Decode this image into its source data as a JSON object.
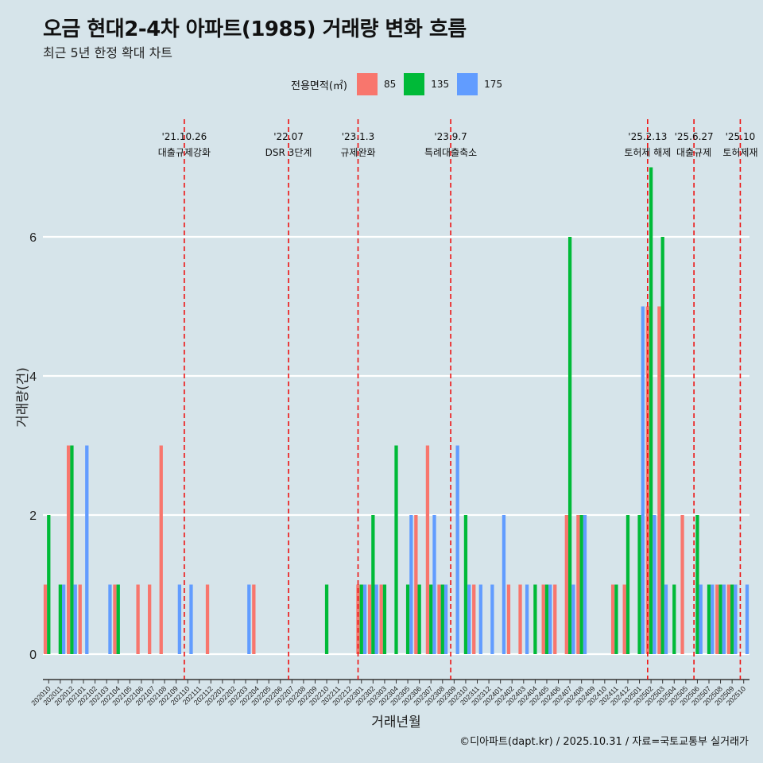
{
  "header": {
    "title": "오금 현대2-4차 아파트(1985) 거래량 변화 흐름",
    "subtitle": "최근 5년 한정 확대 차트"
  },
  "footer": {
    "caption": "©디아파트(dapt.kr) / 2025.10.31 / 자료=국토교통부 실거래가"
  },
  "legend": {
    "title": "전용면적(㎡)",
    "entries": [
      {
        "label": "85",
        "color": "#f8766d"
      },
      {
        "label": "135",
        "color": "#00ba38"
      },
      {
        "label": "175",
        "color": "#619cff"
      }
    ]
  },
  "chart_data": {
    "type": "bar",
    "title": "오금 현대2-4차 아파트(1985) 거래량 변화 흐름",
    "xlabel": "거래년월",
    "ylabel": "거래량(건)",
    "ylim": [
      0,
      7
    ],
    "yticks": [
      0,
      2,
      4,
      6
    ],
    "categories": [
      "202010",
      "202011",
      "202012",
      "202101",
      "202102",
      "202103",
      "202104",
      "202105",
      "202106",
      "202107",
      "202108",
      "202109",
      "202110",
      "202111",
      "202112",
      "202201",
      "202202",
      "202203",
      "202204",
      "202205",
      "202206",
      "202207",
      "202208",
      "202209",
      "202210",
      "202211",
      "202212",
      "202301",
      "202302",
      "202303",
      "202304",
      "202305",
      "202306",
      "202307",
      "202308",
      "202309",
      "202310",
      "202311",
      "202312",
      "202401",
      "202402",
      "202403",
      "202404",
      "202405",
      "202406",
      "202407",
      "202408",
      "202409",
      "202410",
      "202411",
      "202412",
      "202501",
      "202502",
      "202503",
      "202504",
      "202505",
      "202506",
      "202507",
      "202508",
      "202509",
      "202510"
    ],
    "series": [
      {
        "name": "85",
        "values": [
          1,
          0,
          3,
          1,
          0,
          0,
          1,
          0,
          1,
          1,
          3,
          0,
          0,
          0,
          1,
          0,
          0,
          0,
          1,
          0,
          0,
          0,
          0,
          0,
          0,
          0,
          0,
          1,
          1,
          1,
          0,
          0,
          2,
          3,
          1,
          0,
          0,
          1,
          0,
          0,
          1,
          1,
          0,
          1,
          1,
          2,
          2,
          0,
          0,
          1,
          1,
          0,
          5,
          5,
          0,
          2,
          0,
          0,
          1,
          1,
          0
        ]
      },
      {
        "name": "135",
        "values": [
          2,
          1,
          3,
          0,
          0,
          0,
          1,
          0,
          0,
          0,
          0,
          0,
          0,
          0,
          0,
          0,
          0,
          0,
          0,
          0,
          0,
          0,
          0,
          0,
          1,
          0,
          0,
          1,
          2,
          1,
          3,
          1,
          1,
          1,
          1,
          0,
          2,
          0,
          0,
          0,
          0,
          0,
          1,
          1,
          0,
          6,
          2,
          0,
          0,
          1,
          2,
          2,
          7,
          6,
          1,
          0,
          2,
          1,
          1,
          1,
          0
        ]
      },
      {
        "name": "175",
        "values": [
          0,
          1,
          1,
          3,
          0,
          1,
          0,
          0,
          0,
          0,
          0,
          1,
          1,
          0,
          0,
          0,
          0,
          1,
          0,
          0,
          0,
          0,
          0,
          0,
          0,
          0,
          0,
          1,
          1,
          0,
          0,
          2,
          0,
          2,
          1,
          3,
          1,
          1,
          1,
          2,
          0,
          1,
          0,
          1,
          0,
          1,
          2,
          0,
          0,
          0,
          0,
          5,
          2,
          1,
          0,
          0,
          1,
          1,
          1,
          1,
          1
        ]
      }
    ],
    "events": [
      {
        "date": "'21.10.26",
        "label": "대출규제강화",
        "x_month": "202110"
      },
      {
        "date": "'22.07",
        "label": "DSR 3단계",
        "x_month": "202207"
      },
      {
        "date": "'23.1.3",
        "label": "규제완화",
        "x_month": "202301"
      },
      {
        "date": "'23.9.7",
        "label": "특례대출축소",
        "x_month": "202309"
      },
      {
        "date": "'25.2.13",
        "label": "토허제 해제",
        "x_month": "202502"
      },
      {
        "date": "'25.6.27",
        "label": "대출규제",
        "x_month": "202506"
      },
      {
        "date": "'25.10",
        "label": "토허제재",
        "x_month": "202510"
      }
    ]
  }
}
